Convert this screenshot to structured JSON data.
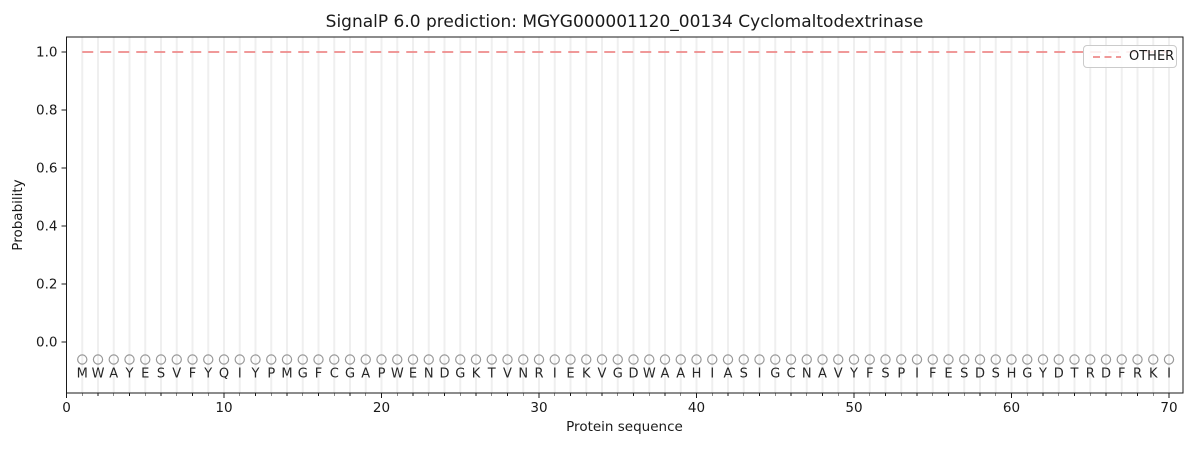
{
  "chart_data": {
    "type": "line",
    "title": "SignalP 6.0 prediction: MGYG000001120_00134 Cyclomaltodextrinase",
    "xlabel": "Protein sequence",
    "ylabel": "Probability",
    "xlim": [
      0,
      71
    ],
    "ylim": [
      -0.18,
      1.05
    ],
    "x_ticks": [
      0,
      10,
      20,
      30,
      40,
      50,
      60,
      70
    ],
    "x_tick_labels": [
      "0",
      "10",
      "20",
      "30",
      "40",
      "50",
      "60",
      "70"
    ],
    "y_ticks": [
      0.0,
      0.2,
      0.4,
      0.6,
      0.8,
      1.0
    ],
    "y_tick_labels": [
      "0.0",
      "0.2",
      "0.4",
      "0.6",
      "0.8",
      "1.0"
    ],
    "grid": "vertical gridline at every residue position, light gray",
    "legend": {
      "position": "upper-right",
      "entries": [
        {
          "label": "OTHER",
          "line_style": "dashed",
          "color": "#ee8b8b"
        }
      ]
    },
    "series": [
      {
        "name": "OTHER",
        "line_style": "dashed",
        "color": "#ee8b8b",
        "x": [
          1,
          2,
          3,
          4,
          5,
          6,
          7,
          8,
          9,
          10,
          11,
          12,
          13,
          14,
          15,
          16,
          17,
          18,
          19,
          20,
          21,
          22,
          23,
          24,
          25,
          26,
          27,
          28,
          29,
          30,
          31,
          32,
          33,
          34,
          35,
          36,
          37,
          38,
          39,
          40,
          41,
          42,
          43,
          44,
          45,
          46,
          47,
          48,
          49,
          50,
          51,
          52,
          53,
          54,
          55,
          56,
          57,
          58,
          59,
          60,
          61,
          62,
          63,
          64,
          65,
          66,
          67,
          68,
          69,
          70
        ],
        "y": [
          1.0,
          1.0,
          1.0,
          1.0,
          1.0,
          1.0,
          1.0,
          1.0,
          1.0,
          1.0,
          1.0,
          1.0,
          1.0,
          1.0,
          1.0,
          1.0,
          1.0,
          1.0,
          1.0,
          1.0,
          1.0,
          1.0,
          1.0,
          1.0,
          1.0,
          1.0,
          1.0,
          1.0,
          1.0,
          1.0,
          1.0,
          1.0,
          1.0,
          1.0,
          1.0,
          1.0,
          1.0,
          1.0,
          1.0,
          1.0,
          1.0,
          1.0,
          1.0,
          1.0,
          1.0,
          1.0,
          1.0,
          1.0,
          1.0,
          1.0,
          1.0,
          1.0,
          1.0,
          1.0,
          1.0,
          1.0,
          1.0,
          1.0,
          1.0,
          1.0,
          1.0,
          1.0,
          1.0,
          1.0,
          1.0,
          1.0,
          1.0,
          1.0,
          1.0,
          1.0
        ]
      }
    ],
    "sequence": "MWAYESVFYQIYPMGFCGAPWENDGKTVNRIEKVGDWAAHIASIGCNAVYFSPIFESDSHGYDTRDFRKI",
    "residue_marker": {
      "shape": "open-circle",
      "y": -0.05
    }
  },
  "colors": {
    "background": "#ffffff",
    "grid": "#efefef",
    "spine": "#1a1a1a",
    "tick_text": "#1a1a1a",
    "other_line": "#ee8b8b",
    "marker_edge": "#999999",
    "residue_text": "#262626"
  }
}
